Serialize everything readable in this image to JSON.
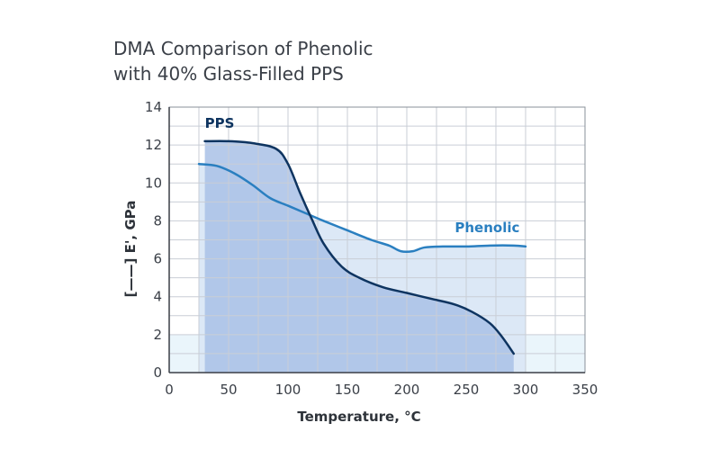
{
  "chart_data": {
    "type": "area",
    "title_lines": [
      "DMA Comparison of Phenolic",
      "with 40% Glass-Filled PPS"
    ],
    "xlabel": "Temperature, °C",
    "ylabel": "[——] E', GPa",
    "xlim": [
      0,
      350
    ],
    "ylim": [
      0,
      14
    ],
    "xticks": [
      0,
      50,
      100,
      150,
      200,
      250,
      300,
      350
    ],
    "yticks": [
      0,
      2,
      4,
      6,
      8,
      10,
      12,
      14
    ],
    "grid": true,
    "series": [
      {
        "name": "Phenolic",
        "color": "#2a7fc0",
        "fill": "#dce8f6",
        "x": [
          25,
          40,
          55,
          70,
          85,
          100,
          115,
          130,
          150,
          170,
          185,
          195,
          205,
          215,
          230,
          250,
          270,
          290,
          300
        ],
        "y": [
          11.0,
          10.9,
          10.5,
          9.9,
          9.2,
          8.8,
          8.4,
          8.0,
          7.5,
          7.0,
          6.7,
          6.4,
          6.4,
          6.6,
          6.65,
          6.65,
          6.7,
          6.7,
          6.65
        ]
      },
      {
        "name": "PPS",
        "color": "#0e3460",
        "fill": "#a9c1e6",
        "x": [
          30,
          50,
          70,
          90,
          100,
          110,
          120,
          130,
          145,
          160,
          180,
          200,
          220,
          240,
          255,
          270,
          280,
          290
        ],
        "y": [
          12.2,
          12.2,
          12.1,
          11.8,
          11.0,
          9.5,
          8.1,
          6.8,
          5.6,
          5.0,
          4.5,
          4.2,
          3.9,
          3.6,
          3.2,
          2.6,
          1.9,
          1.0
        ]
      }
    ],
    "bands": [
      {
        "y0": 0,
        "y1": 2,
        "color": "#eaf5fb"
      }
    ]
  }
}
